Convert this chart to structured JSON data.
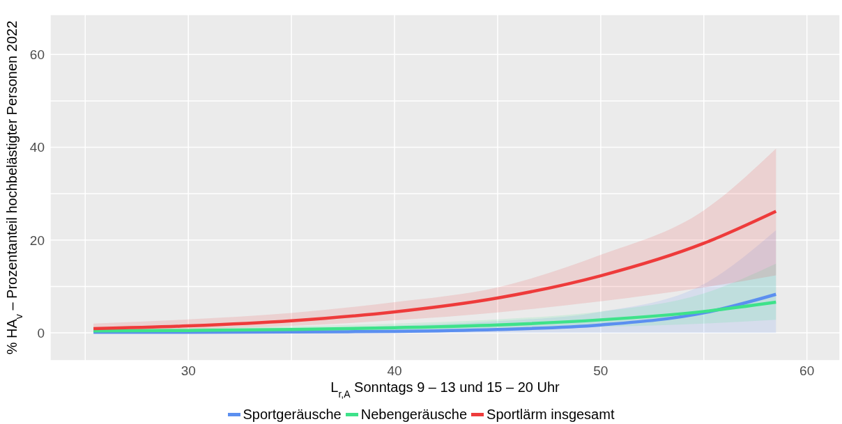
{
  "chart_data": {
    "type": "line",
    "xlabel": "L$_{r,A}$ Sonntags 9 – 13 und 15 – 20 Uhr",
    "ylabel": "% HA$_{v}$ – Prozentanteil hochbelästigter Personen 2022",
    "x": [
      25.4,
      30,
      35,
      40,
      45,
      50,
      55,
      58.5
    ],
    "series": [
      {
        "name": "Sportgeräusche",
        "color": "#5b8ff0",
        "values": [
          0.1,
          0.1,
          0.2,
          0.3,
          0.7,
          1.7,
          4.3,
          8.3
        ],
        "lower": [
          0,
          0,
          0,
          0,
          0,
          0,
          0,
          0
        ],
        "upper": [
          0.4,
          0.5,
          0.8,
          1.5,
          2.5,
          4.5,
          10.5,
          22.1
        ]
      },
      {
        "name": "Nebengeräusche",
        "color": "#3ee28a",
        "values": [
          0.4,
          0.5,
          0.7,
          1.1,
          1.7,
          2.8,
          4.6,
          6.6
        ],
        "lower": [
          0.1,
          0.2,
          0.3,
          0.5,
          0.8,
          1.3,
          2,
          2.8
        ],
        "upper": [
          0.8,
          1,
          1.4,
          2,
          2.9,
          4.6,
          8.5,
          14.9
        ]
      },
      {
        "name": "Sportlärm insgesamt",
        "color": "#ee3b3b",
        "values": [
          0.9,
          1.5,
          2.6,
          4.5,
          7.5,
          12.3,
          19.3,
          26.2
        ],
        "lower": [
          0.3,
          0.8,
          1.5,
          2.7,
          4.4,
          6.8,
          9.8,
          12.4
        ],
        "upper": [
          2,
          2.9,
          4.3,
          6.6,
          9.8,
          16.8,
          26.4,
          39.7
        ]
      }
    ],
    "xlim": [
      23.3,
      61.6
    ],
    "ylim": [
      -6,
      68.6
    ],
    "xticks": [
      {
        "value": 25,
        "label": null
      },
      30,
      {
        "value": 35,
        "label": null
      },
      40,
      {
        "value": 45,
        "label": null
      },
      50,
      {
        "value": 55,
        "label": null
      },
      60
    ],
    "yticks": [
      0,
      {
        "value": 10,
        "label": null
      },
      20,
      {
        "value": 30,
        "label": null
      },
      40,
      {
        "value": 50,
        "label": null
      },
      60
    ],
    "grid": true,
    "legend": "bottom",
    "line_style": "solid",
    "marker": "none"
  }
}
